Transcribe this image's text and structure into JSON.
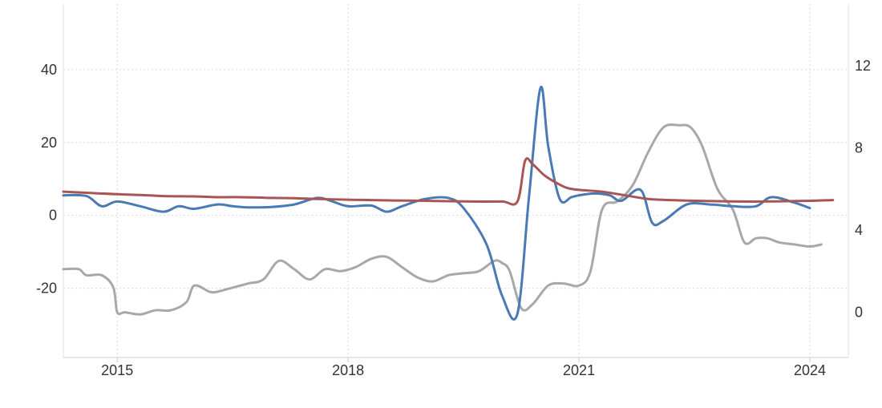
{
  "chart_data": {
    "type": "line",
    "grid": true,
    "x_axis": {
      "range": [
        2014.3,
        2024.5
      ],
      "ticks": [
        2015,
        2018,
        2021,
        2024
      ],
      "tick_labels": [
        "2015",
        "2018",
        "2021",
        "2024"
      ]
    },
    "y_left": {
      "range": [
        -39,
        58
      ],
      "ticks": [
        40,
        20,
        0,
        -20
      ],
      "tick_labels": [
        "40",
        "20",
        "0",
        "-20"
      ]
    },
    "y_right": {
      "range": [
        -2.2,
        15
      ],
      "ticks": [
        12,
        8,
        4,
        0
      ],
      "tick_labels": [
        "12",
        "8",
        "4",
        "0"
      ]
    },
    "series": [
      {
        "axis": "left",
        "color": "#4a7ab5",
        "x": [
          2014.3,
          2014.6,
          2014.8,
          2015.0,
          2015.3,
          2015.6,
          2015.8,
          2016.0,
          2016.3,
          2016.5,
          2016.7,
          2017.0,
          2017.3,
          2017.6,
          2017.8,
          2018.0,
          2018.3,
          2018.5,
          2018.7,
          2019.0,
          2019.3,
          2019.5,
          2019.8,
          2020.0,
          2020.2,
          2020.35,
          2020.5,
          2020.6,
          2020.75,
          2020.9,
          2021.0,
          2021.2,
          2021.4,
          2021.55,
          2021.8,
          2021.95,
          2022.1,
          2022.4,
          2022.7,
          2023.0,
          2023.3,
          2023.5,
          2023.8,
          2024.0
        ],
        "y": [
          5.5,
          5.3,
          2.5,
          3.8,
          2.5,
          1.0,
          2.5,
          1.8,
          3.0,
          2.5,
          2.2,
          2.3,
          3.0,
          4.8,
          3.8,
          2.5,
          2.7,
          1.0,
          2.5,
          4.5,
          4.8,
          2.0,
          -8.0,
          -22.0,
          -27.0,
          5.0,
          35.0,
          19.0,
          4.5,
          5.0,
          5.5,
          6.0,
          5.5,
          4.0,
          7.0,
          -2.0,
          -1.5,
          3.0,
          3.0,
          2.5,
          2.5,
          5.0,
          3.5,
          2.0
        ]
      },
      {
        "axis": "left",
        "color": "#a85555",
        "x": [
          2014.3,
          2014.6,
          2015.0,
          2015.3,
          2015.6,
          2016.0,
          2016.3,
          2016.6,
          2017.0,
          2017.3,
          2017.6,
          2018.0,
          2018.3,
          2018.6,
          2019.0,
          2019.3,
          2019.6,
          2020.0,
          2020.2,
          2020.3,
          2020.4,
          2020.55,
          2020.7,
          2020.85,
          2021.0,
          2021.3,
          2021.6,
          2021.9,
          2022.2,
          2022.5,
          2022.8,
          2023.1,
          2023.4,
          2023.7,
          2024.0,
          2024.3
        ],
        "y": [
          6.5,
          6.2,
          5.8,
          5.6,
          5.3,
          5.2,
          5.0,
          5.0,
          4.8,
          4.7,
          4.5,
          4.3,
          4.2,
          4.1,
          4.0,
          3.9,
          3.8,
          3.8,
          3.8,
          15.0,
          14.0,
          11.0,
          9.0,
          7.5,
          7.0,
          6.5,
          5.5,
          4.5,
          4.2,
          4.0,
          3.9,
          3.8,
          3.8,
          3.9,
          4.0,
          4.2
        ]
      },
      {
        "axis": "right",
        "color": "#a8a8a8",
        "x": [
          2014.3,
          2014.5,
          2014.6,
          2014.8,
          2014.95,
          2015.0,
          2015.1,
          2015.3,
          2015.5,
          2015.7,
          2015.9,
          2016.0,
          2016.2,
          2016.3,
          2016.5,
          2016.7,
          2016.9,
          2017.1,
          2017.3,
          2017.5,
          2017.7,
          2017.9,
          2018.1,
          2018.3,
          2018.5,
          2018.7,
          2018.9,
          2019.1,
          2019.3,
          2019.5,
          2019.7,
          2019.9,
          2020.0,
          2020.1,
          2020.25,
          2020.4,
          2020.6,
          2020.8,
          2021.0,
          2021.15,
          2021.3,
          2021.5,
          2021.7,
          2021.9,
          2022.1,
          2022.3,
          2022.45,
          2022.6,
          2022.8,
          2023.0,
          2023.15,
          2023.3,
          2023.45,
          2023.6,
          2023.8,
          2024.0,
          2024.15
        ],
        "y": [
          2.1,
          2.1,
          1.8,
          1.8,
          1.2,
          0.0,
          0.0,
          -0.1,
          0.1,
          0.1,
          0.5,
          1.3,
          1.0,
          1.0,
          1.2,
          1.4,
          1.6,
          2.5,
          2.1,
          1.6,
          2.1,
          2.0,
          2.2,
          2.6,
          2.7,
          2.2,
          1.7,
          1.5,
          1.8,
          1.9,
          2.0,
          2.5,
          2.4,
          2.0,
          0.2,
          0.4,
          1.3,
          1.4,
          1.3,
          2.0,
          5.0,
          5.4,
          6.2,
          7.8,
          9.0,
          9.1,
          9.0,
          8.1,
          6.0,
          5.0,
          3.4,
          3.6,
          3.6,
          3.4,
          3.3,
          3.2,
          3.3
        ]
      }
    ]
  }
}
